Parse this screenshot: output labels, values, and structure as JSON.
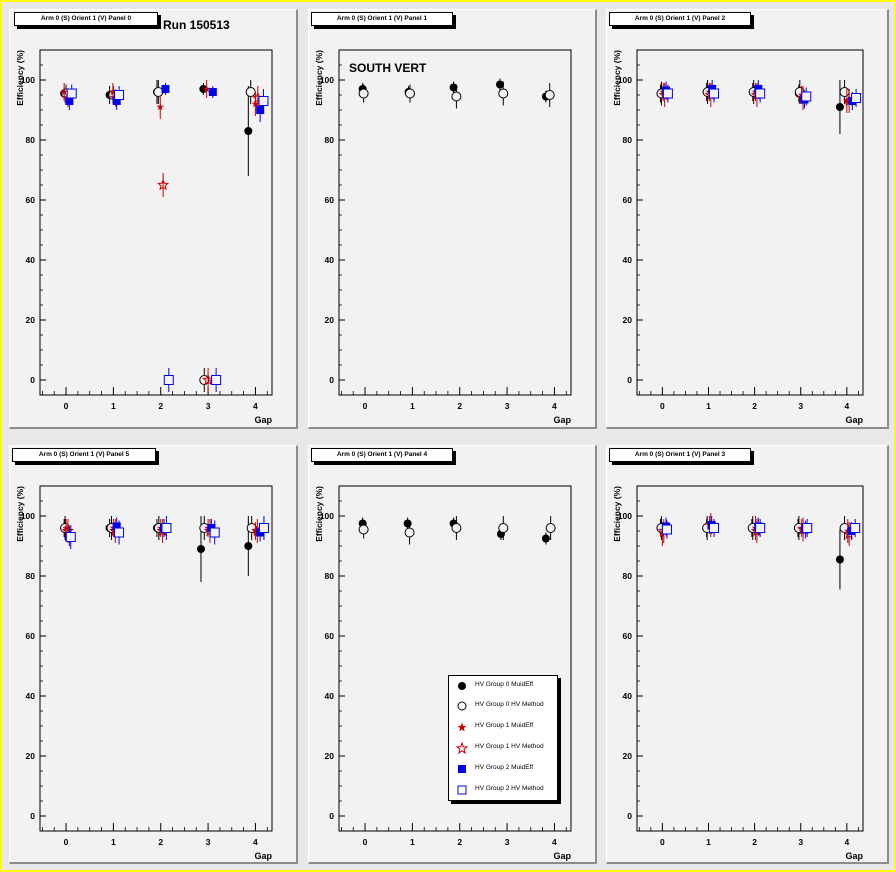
{
  "run_label": "Run 150513",
  "south_label": "SOUTH VERT",
  "x_axis_label": "Gap",
  "y_axis_label": "Efficiency (%)",
  "legend": [
    {
      "label": "HV Group 0 MuidEff",
      "marker": "filled-circle",
      "color": "#000000"
    },
    {
      "label": "HV Group 0 HV Method",
      "marker": "open-circle",
      "color": "#000000"
    },
    {
      "label": "HV Group 1 MuidEff",
      "marker": "filled-star",
      "color": "#cc0000"
    },
    {
      "label": "HV Group 1 HV Method",
      "marker": "open-star",
      "color": "#cc0000"
    },
    {
      "label": "HV Group 2 MuidEff",
      "marker": "filled-square",
      "color": "#0000ee"
    },
    {
      "label": "HV Group 2 HV Method",
      "marker": "open-square",
      "color": "#0000ee"
    }
  ],
  "chart_data": [
    {
      "type": "scatter",
      "title": "Arm 0 (S) Orient 1 (V) Panel 0",
      "xlabel": "Gap",
      "ylabel": "Efficiency (%)",
      "xlim": [
        -0.55,
        4.35
      ],
      "ylim": [
        -5,
        110
      ],
      "x_ticks": [
        0,
        1,
        2,
        3,
        4
      ],
      "y_ticks": [
        0,
        20,
        40,
        60,
        80,
        100
      ],
      "grid": false,
      "series": [
        {
          "name": "HV Group 0 MuidEff",
          "points": [
            [
              -0.04,
              95.5,
              2
            ],
            [
              0.92,
              95,
              3
            ],
            [
              1.92,
              96,
              4
            ],
            [
              2.9,
              97,
              2
            ],
            [
              3.85,
              83,
              15
            ]
          ]
        },
        {
          "name": "HV Group 0 HV Method",
          "points": [
            [
              0,
              95.5,
              3
            ],
            [
              1,
              95,
              3
            ],
            [
              1.95,
              96,
              4
            ],
            [
              2.92,
              0,
              4
            ],
            [
              3.9,
              96,
              4
            ]
          ]
        },
        {
          "name": "HV Group 1 MuidEff",
          "points": [
            [
              -0.04,
              96,
              3
            ],
            [
              0.99,
              96,
              3
            ],
            [
              1.99,
              91,
              4
            ],
            [
              2.97,
              97,
              3
            ],
            [
              4.0,
              92,
              4
            ]
          ]
        },
        {
          "name": "HV Group 1 HV Method",
          "points": [
            [
              0.04,
              94,
              3
            ],
            [
              1.05,
              94,
              3
            ],
            [
              2.05,
              65,
              4
            ],
            [
              3.0,
              0,
              4
            ],
            [
              4.05,
              94,
              4
            ]
          ]
        },
        {
          "name": "HV Group 2 MuidEff",
          "points": [
            [
              0.07,
              93,
              3
            ],
            [
              1.07,
              93,
              3
            ],
            [
              2.1,
              97,
              2
            ],
            [
              3.1,
              96,
              2
            ],
            [
              4.1,
              90,
              4
            ]
          ]
        },
        {
          "name": "HV Group 2 HV Method",
          "points": [
            [
              0.12,
              95.5,
              3
            ],
            [
              1.12,
              95,
              3
            ],
            [
              2.17,
              0,
              4
            ],
            [
              3.17,
              0,
              4
            ],
            [
              4.17,
              93,
              4
            ]
          ]
        }
      ]
    },
    {
      "type": "scatter",
      "title": "Arm 0 (S) Orient 1 (V) Panel 1",
      "xlabel": "Gap",
      "ylabel": "Efficiency (%)",
      "xlim": [
        -0.55,
        4.35
      ],
      "ylim": [
        -5,
        110
      ],
      "x_ticks": [
        0,
        1,
        2,
        3,
        4
      ],
      "y_ticks": [
        0,
        20,
        40,
        60,
        80,
        100
      ],
      "grid": false,
      "series": [
        {
          "name": "HV Group 0 MuidEff",
          "points": [
            [
              -0.05,
              97,
              2
            ],
            [
              0.92,
              96,
              2
            ],
            [
              1.87,
              97.5,
              2
            ],
            [
              2.85,
              98.5,
              2
            ],
            [
              3.82,
              94.5,
              2
            ]
          ]
        },
        {
          "name": "HV Group 0 HV Method",
          "points": [
            [
              -0.03,
              95.5,
              3
            ],
            [
              0.95,
              95.5,
              3
            ],
            [
              1.93,
              94.5,
              4
            ],
            [
              2.92,
              95.5,
              4
            ],
            [
              3.9,
              95,
              4
            ]
          ]
        }
      ]
    },
    {
      "type": "scatter",
      "title": "Arm 0 (S) Orient 1 (V) Panel 2",
      "xlabel": "Gap",
      "ylabel": "Efficiency (%)",
      "xlim": [
        -0.55,
        4.35
      ],
      "ylim": [
        -5,
        110
      ],
      "x_ticks": [
        0,
        1,
        2,
        3,
        4
      ],
      "y_ticks": [
        0,
        20,
        40,
        60,
        80,
        100
      ],
      "grid": false,
      "series": [
        {
          "name": "HV Group 0 MuidEff",
          "points": [
            [
              -0.04,
              95.5,
              3
            ],
            [
              0.96,
              96,
              3
            ],
            [
              1.96,
              96,
              3
            ],
            [
              2.96,
              95.5,
              3
            ],
            [
              3.85,
              91,
              9
            ]
          ]
        },
        {
          "name": "HV Group 0 HV Method",
          "points": [
            [
              -0.02,
              95.5,
              4
            ],
            [
              0.98,
              96,
              4
            ],
            [
              1.98,
              96,
              4
            ],
            [
              2.98,
              96,
              4
            ],
            [
              3.95,
              96,
              4
            ]
          ]
        },
        {
          "name": "HV Group 1 MuidEff",
          "points": [
            [
              0.02,
              96,
              3
            ],
            [
              1.02,
              96,
              3
            ],
            [
              2.02,
              96,
              3
            ],
            [
              3.02,
              95,
              3
            ],
            [
              4.0,
              93,
              4
            ]
          ]
        },
        {
          "name": "HV Group 1 HV Method",
          "points": [
            [
              0.05,
              95,
              4
            ],
            [
              1.05,
              95,
              4
            ],
            [
              2.05,
              95,
              4
            ],
            [
              3.05,
              94,
              4
            ],
            [
              4.05,
              93,
              4
            ]
          ]
        },
        {
          "name": "HV Group 2 MuidEff",
          "points": [
            [
              0.08,
              96.5,
              3
            ],
            [
              1.08,
              97,
              3
            ],
            [
              2.08,
              97,
              3
            ],
            [
              3.08,
              93.5,
              3
            ],
            [
              4.12,
              93,
              3
            ]
          ]
        },
        {
          "name": "HV Group 2 HV Method",
          "points": [
            [
              0.12,
              95.5,
              3
            ],
            [
              1.12,
              95.5,
              3
            ],
            [
              2.12,
              95.5,
              3
            ],
            [
              3.12,
              94.5,
              3
            ],
            [
              4.2,
              94,
              3
            ]
          ]
        }
      ]
    },
    {
      "type": "scatter",
      "title": "Arm 0 (S) Orient 1 (V) Panel 5",
      "xlabel": "Gap",
      "ylabel": "Efficiency (%)",
      "xlim": [
        -0.55,
        4.35
      ],
      "ylim": [
        -5,
        110
      ],
      "x_ticks": [
        0,
        1,
        2,
        3,
        4
      ],
      "y_ticks": [
        0,
        20,
        40,
        60,
        80,
        100
      ],
      "grid": false,
      "series": [
        {
          "name": "HV Group 0 MuidEff",
          "points": [
            [
              -0.04,
              96,
              3
            ],
            [
              0.92,
              96,
              3
            ],
            [
              1.92,
              96,
              3
            ],
            [
              2.85,
              89,
              11
            ],
            [
              3.85,
              90,
              10
            ]
          ]
        },
        {
          "name": "HV Group 0 HV Method",
          "points": [
            [
              -0.02,
              96,
              4
            ],
            [
              0.96,
              96,
              4
            ],
            [
              1.96,
              96,
              4
            ],
            [
              2.92,
              96,
              4
            ],
            [
              3.92,
              96,
              4
            ]
          ]
        },
        {
          "name": "HV Group 1 MuidEff",
          "points": [
            [
              0.0,
              96,
              3
            ],
            [
              1.0,
              96,
              3
            ],
            [
              2.0,
              96,
              3
            ],
            [
              3.0,
              96,
              3
            ],
            [
              4.0,
              95,
              3
            ]
          ]
        },
        {
          "name": "HV Group 1 HV Method",
          "points": [
            [
              0.04,
              95,
              4
            ],
            [
              1.04,
              95,
              4
            ],
            [
              2.04,
              95,
              4
            ],
            [
              3.04,
              95,
              4
            ],
            [
              4.04,
              95,
              4
            ]
          ]
        },
        {
          "name": "HV Group 2 MuidEff",
          "points": [
            [
              0.07,
              93,
              3
            ],
            [
              1.07,
              96.5,
              3
            ],
            [
              2.07,
              96,
              3
            ],
            [
              3.07,
              96,
              3
            ],
            [
              4.1,
              94.5,
              3
            ]
          ]
        },
        {
          "name": "HV Group 2 HV Method",
          "points": [
            [
              0.1,
              93,
              4
            ],
            [
              1.12,
              94.5,
              4
            ],
            [
              2.12,
              96,
              4
            ],
            [
              3.14,
              94.5,
              4
            ],
            [
              4.18,
              96,
              4
            ]
          ]
        }
      ]
    },
    {
      "type": "scatter",
      "title": "Arm 0 (S) Orient 1 (V) Panel 4",
      "xlabel": "Gap",
      "ylabel": "Efficiency (%)",
      "xlim": [
        -0.55,
        4.35
      ],
      "ylim": [
        -5,
        110
      ],
      "x_ticks": [
        0,
        1,
        2,
        3,
        4
      ],
      "y_ticks": [
        0,
        20,
        40,
        60,
        80,
        100
      ],
      "grid": false,
      "series": [
        {
          "name": "HV Group 0 MuidEff",
          "points": [
            [
              -0.05,
              97.5,
              2
            ],
            [
              0.9,
              97.5,
              2
            ],
            [
              1.87,
              97.5,
              2
            ],
            [
              2.87,
              94,
              2
            ],
            [
              3.82,
              92.5,
              2
            ]
          ]
        },
        {
          "name": "HV Group 0 HV Method",
          "points": [
            [
              -0.03,
              95.5,
              3
            ],
            [
              0.94,
              94.5,
              4
            ],
            [
              1.93,
              96,
              4
            ],
            [
              2.92,
              96,
              4
            ],
            [
              3.92,
              96,
              4
            ]
          ]
        }
      ]
    },
    {
      "type": "scatter",
      "title": "Arm 0 (S) Orient 1 (V) Panel 3",
      "xlabel": "Gap",
      "ylabel": "Efficiency (%)",
      "xlim": [
        -0.55,
        4.35
      ],
      "ylim": [
        -5,
        110
      ],
      "x_ticks": [
        0,
        1,
        2,
        3,
        4
      ],
      "y_ticks": [
        0,
        20,
        40,
        60,
        80,
        100
      ],
      "grid": false,
      "series": [
        {
          "name": "HV Group 0 MuidEff",
          "points": [
            [
              -0.04,
              96,
              3
            ],
            [
              0.96,
              96,
              3
            ],
            [
              1.94,
              96,
              3
            ],
            [
              2.94,
              96,
              3
            ],
            [
              3.85,
              85.5,
              10
            ]
          ]
        },
        {
          "name": "HV Group 0 HV Method",
          "points": [
            [
              -0.02,
              96,
              4
            ],
            [
              0.97,
              96,
              4
            ],
            [
              1.96,
              96,
              4
            ],
            [
              2.96,
              96,
              4
            ],
            [
              3.95,
              96,
              4
            ]
          ]
        },
        {
          "name": "HV Group 1 MuidEff",
          "points": [
            [
              0.0,
              94,
              4
            ],
            [
              1.02,
              97,
              3
            ],
            [
              2.02,
              96,
              4
            ],
            [
              3.02,
              96,
              3
            ],
            [
              4.02,
              95,
              4
            ]
          ]
        },
        {
          "name": "HV Group 1 HV Method",
          "points": [
            [
              0.03,
              95,
              4
            ],
            [
              1.05,
              97,
              4
            ],
            [
              2.05,
              95,
              4
            ],
            [
              3.05,
              95.5,
              4
            ],
            [
              4.05,
              94,
              4
            ]
          ]
        },
        {
          "name": "HV Group 2 MuidEff",
          "points": [
            [
              0.08,
              96.5,
              3
            ],
            [
              1.07,
              97,
              3
            ],
            [
              2.08,
              96.5,
              3
            ],
            [
              3.1,
              95.5,
              3
            ],
            [
              4.1,
              95,
              3
            ]
          ]
        },
        {
          "name": "HV Group 2 HV Method",
          "points": [
            [
              0.1,
              95.5,
              3
            ],
            [
              1.12,
              96,
              3
            ],
            [
              2.12,
              96,
              3
            ],
            [
              3.14,
              96,
              3
            ],
            [
              4.18,
              96,
              3
            ]
          ]
        }
      ]
    }
  ]
}
